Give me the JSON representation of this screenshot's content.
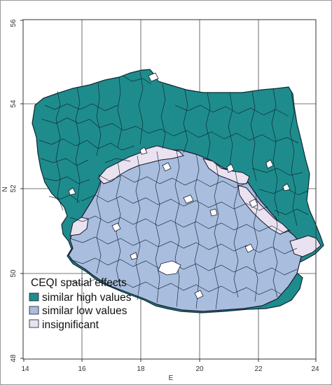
{
  "map": {
    "x_axis": {
      "title": "E",
      "ticks": [
        "14",
        "16",
        "18",
        "20",
        "22",
        "24"
      ]
    },
    "y_axis": {
      "title": "N",
      "ticks": [
        "48",
        "50",
        "52",
        "54",
        "56"
      ]
    },
    "grid": true,
    "legend": {
      "title": "CEQI spatial effects",
      "position": "bottom-left",
      "items": [
        {
          "label": "similar high values",
          "color": "#1e8c8c"
        },
        {
          "label": "similar low values",
          "color": "#a9bddf"
        },
        {
          "label": "insignificant",
          "color": "#eae2f0"
        }
      ]
    },
    "colors": {
      "high": "#1e8c8c",
      "low": "#a9bddf",
      "insignificant": "#eae2f0",
      "border": "#1a1a2e"
    }
  }
}
